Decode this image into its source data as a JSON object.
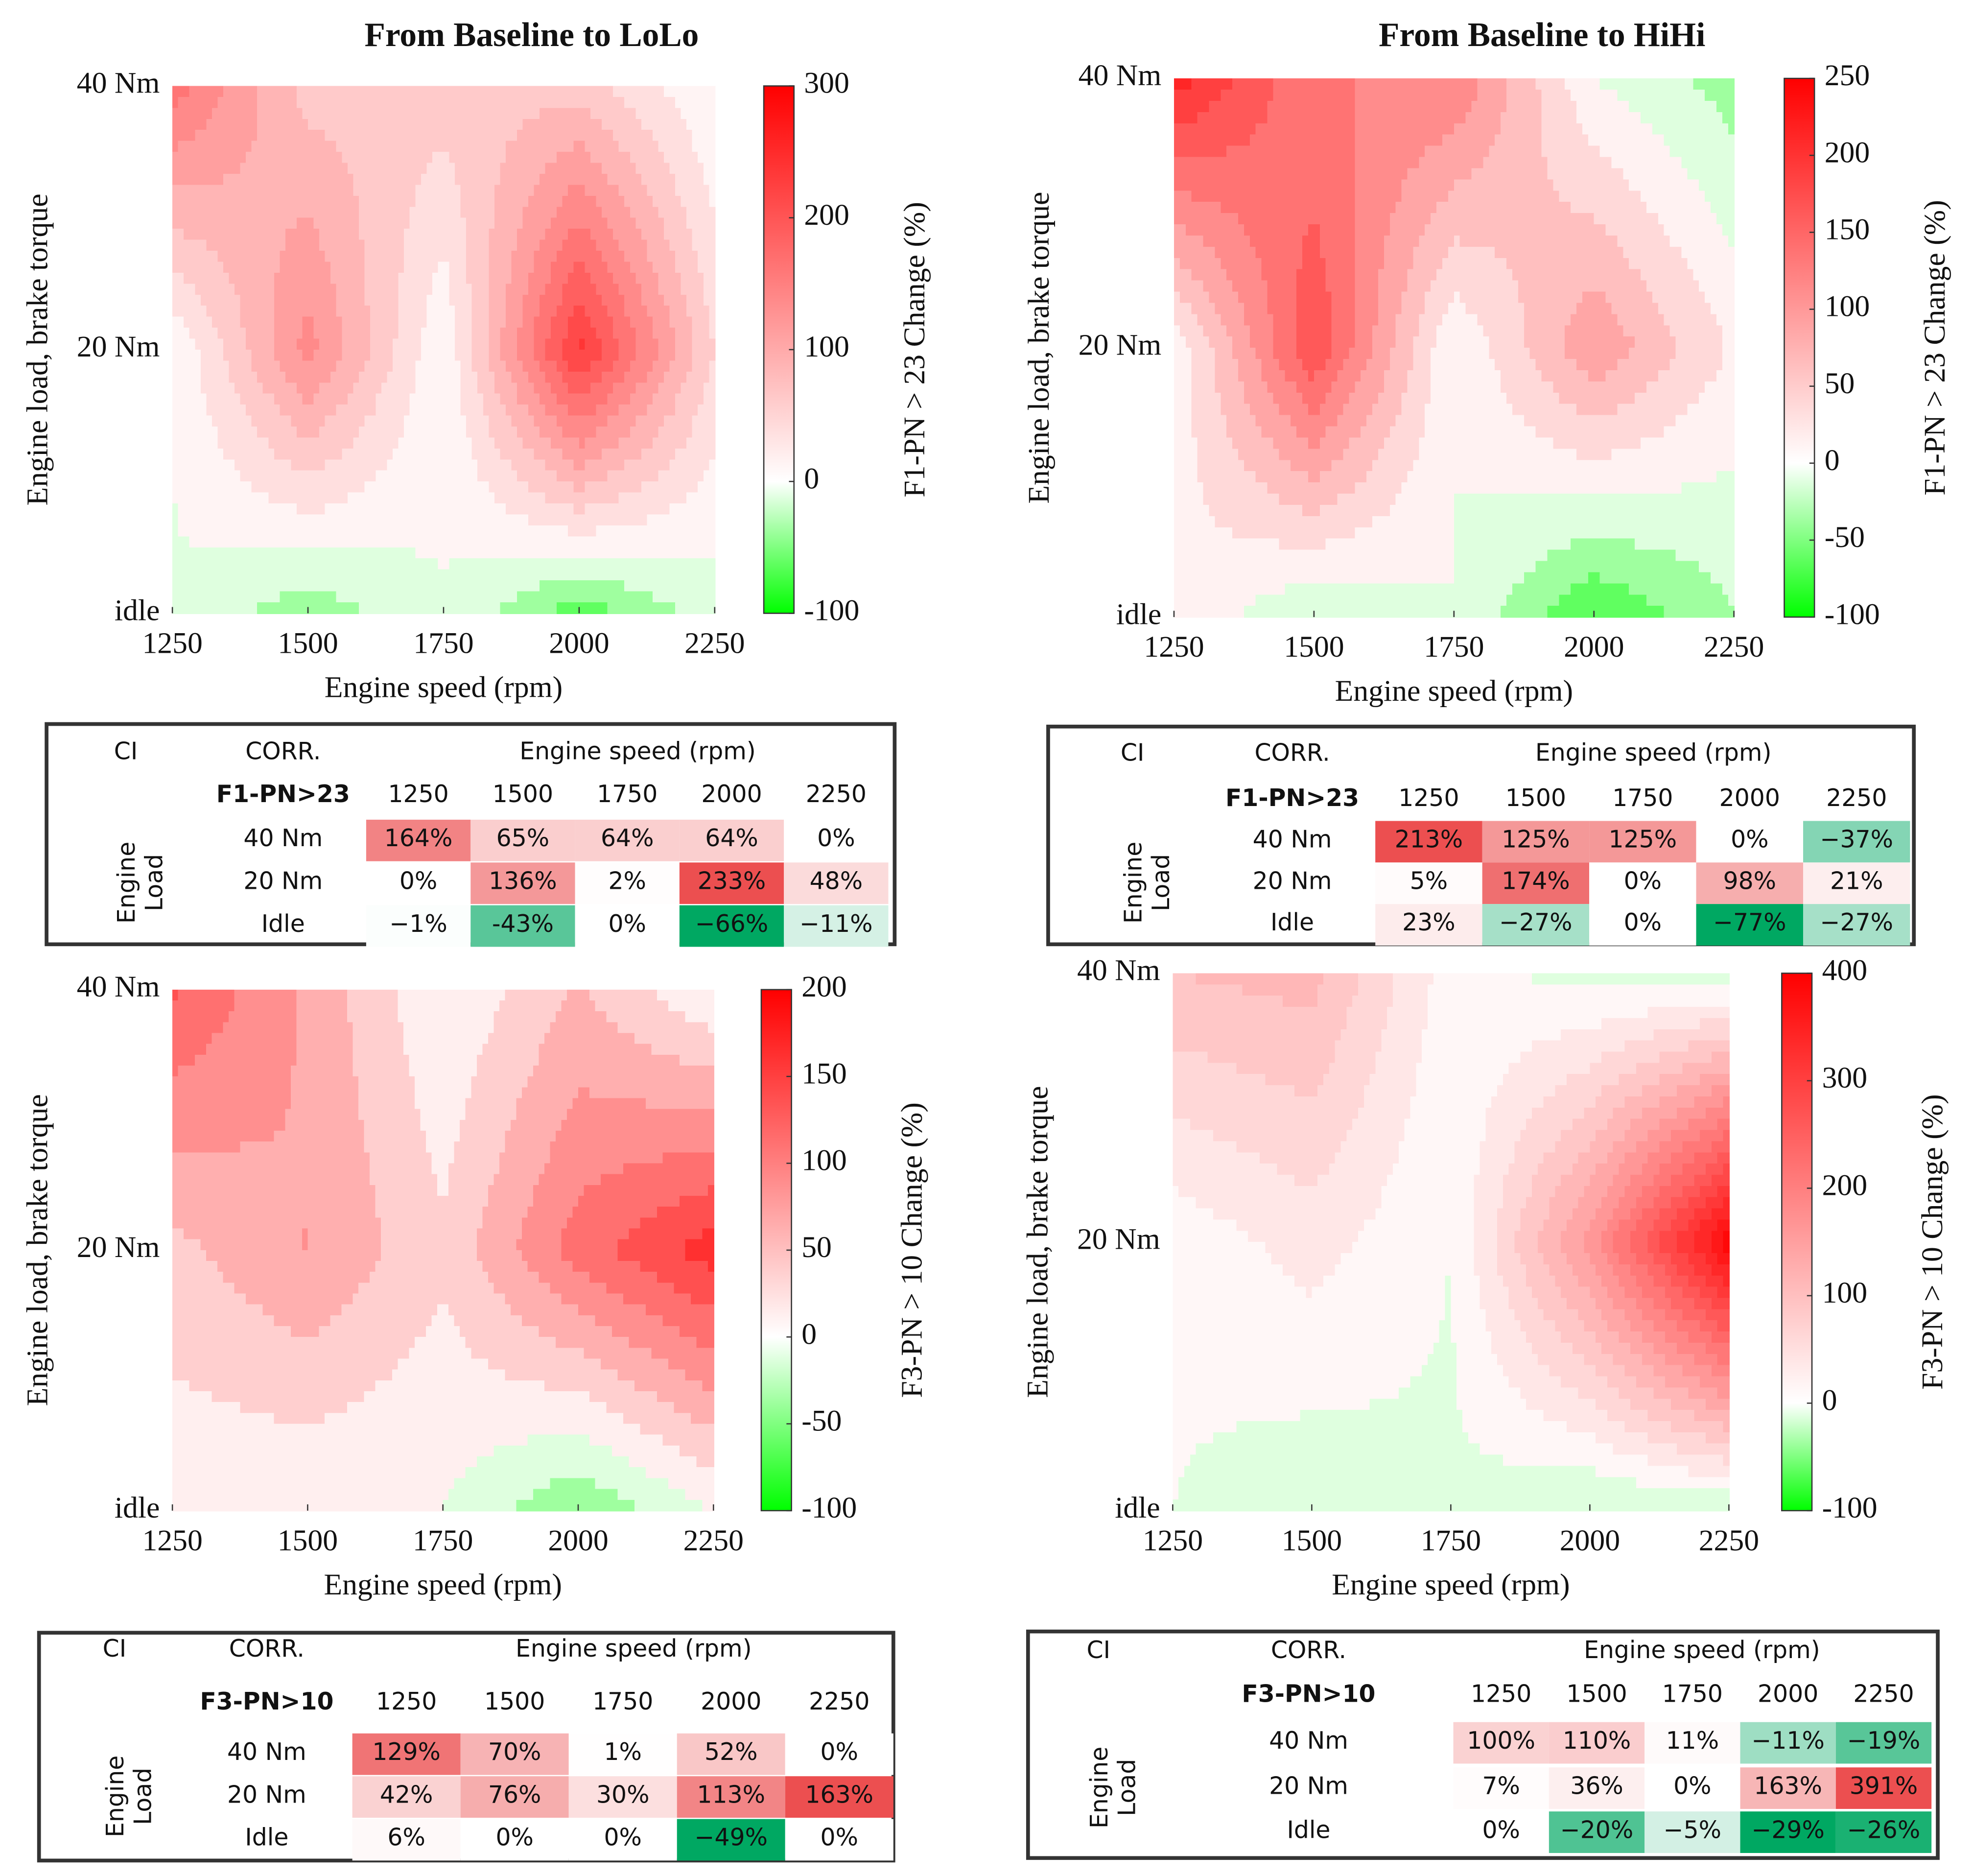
{
  "chart_data": [
    {
      "type": "contour",
      "title": "From Baseline to LoLo",
      "x": [
        1250,
        1500,
        1750,
        2000,
        2250
      ],
      "y": [
        "40 Nm",
        "20 Nm",
        "idle"
      ],
      "z": [
        [
          164,
          65,
          64,
          64,
          0
        ],
        [
          0,
          136,
          2,
          233,
          48
        ],
        [
          -1,
          -43,
          0,
          -66,
          -11
        ]
      ],
      "xlabel": "Engine speed (rpm)",
      "ylabel": "Engine load, brake torque",
      "colorbar_label": "F1-PN > 23 Change (%)",
      "clim": [
        -100,
        300
      ],
      "cticks": [
        -100,
        0,
        100,
        200,
        300
      ],
      "contour_step": 25,
      "colors": {
        "low": "#00ff00",
        "mid": "#ffffff",
        "high": "#ff0000"
      },
      "table": {
        "ci": "CI",
        "corr": "CORR.",
        "speed_header": "Engine speed (rpm)",
        "metric": "F1-PN>23",
        "columns": [
          "1250",
          "1500",
          "1750",
          "2000",
          "2250"
        ],
        "side_label": [
          "Engine",
          "Load"
        ],
        "row_labels": [
          "40 Nm",
          "20 Nm",
          "Idle"
        ],
        "value_labels": [
          [
            "164%",
            "65%",
            "64%",
            "64%",
            "0%"
          ],
          [
            "0%",
            "136%",
            "2%",
            "233%",
            "48%"
          ],
          [
            "−1%",
            "-43%",
            "0%",
            "−66%",
            "−11%"
          ]
        ]
      }
    },
    {
      "type": "contour",
      "title": "From Baseline to HiHi",
      "x": [
        1250,
        1500,
        1750,
        2000,
        2250
      ],
      "y": [
        "40 Nm",
        "20 Nm",
        "idle"
      ],
      "z": [
        [
          213,
          125,
          125,
          0,
          -37
        ],
        [
          5,
          174,
          0,
          98,
          21
        ],
        [
          23,
          -27,
          0,
          -77,
          -27
        ]
      ],
      "xlabel": "Engine speed (rpm)",
      "ylabel": "Engine load, brake torque",
      "colorbar_label": "F1-PN > 23 Change (%)",
      "clim": [
        -100,
        250
      ],
      "cticks": [
        -100,
        -50,
        0,
        50,
        100,
        150,
        200,
        250
      ],
      "contour_step": 25,
      "colors": {
        "low": "#00ff00",
        "mid": "#ffffff",
        "high": "#ff0000"
      },
      "table": {
        "ci": "CI",
        "corr": "CORR.",
        "speed_header": "Engine speed (rpm)",
        "metric": "F1-PN>23",
        "columns": [
          "1250",
          "1500",
          "1750",
          "2000",
          "2250"
        ],
        "side_label": [
          "Engine",
          "Load"
        ],
        "row_labels": [
          "40 Nm",
          "20 Nm",
          "Idle"
        ],
        "value_labels": [
          [
            "213%",
            "125%",
            "125%",
            "0%",
            "−37%"
          ],
          [
            "5%",
            "174%",
            "0%",
            "98%",
            "21%"
          ],
          [
            "23%",
            "−27%",
            "0%",
            "−77%",
            "−27%"
          ]
        ]
      }
    },
    {
      "type": "contour",
      "x": [
        1250,
        1500,
        1750,
        2000,
        2250
      ],
      "y": [
        "40 Nm",
        "20 Nm",
        "idle"
      ],
      "z": [
        [
          129,
          70,
          1,
          52,
          0
        ],
        [
          42,
          76,
          30,
          113,
          163
        ],
        [
          6,
          0,
          0,
          -49,
          0
        ]
      ],
      "xlabel": "Engine speed (rpm)",
      "ylabel": "Engine load, brake torque",
      "colorbar_label": "F3-PN > 10 Change (%)",
      "clim": [
        -100,
        200
      ],
      "cticks": [
        -100,
        -50,
        0,
        50,
        100,
        150,
        200
      ],
      "contour_step": 25,
      "colors": {
        "low": "#00ff00",
        "mid": "#ffffff",
        "high": "#ff0000"
      },
      "table": {
        "ci": "CI",
        "corr": "CORR.",
        "speed_header": "Engine speed (rpm)",
        "metric": "F3-PN>10",
        "columns": [
          "1250",
          "1500",
          "1750",
          "2000",
          "2250"
        ],
        "side_label": [
          "Engine",
          "Load"
        ],
        "row_labels": [
          "40 Nm",
          "20 Nm",
          "Idle"
        ],
        "value_labels": [
          [
            "129%",
            "70%",
            "1%",
            "52%",
            "0%"
          ],
          [
            "42%",
            "76%",
            "30%",
            "113%",
            "163%"
          ],
          [
            "6%",
            "0%",
            "0%",
            "−49%",
            "0%"
          ]
        ]
      }
    },
    {
      "type": "contour",
      "x": [
        1250,
        1500,
        1750,
        2000,
        2250
      ],
      "y": [
        "40 Nm",
        "20 Nm",
        "idle"
      ],
      "z": [
        [
          100,
          110,
          11,
          -11,
          -19
        ],
        [
          7,
          36,
          0,
          163,
          391
        ],
        [
          0,
          -20,
          -5,
          -29,
          -26
        ]
      ],
      "xlabel": "Engine speed (rpm)",
      "ylabel": "Engine load, brake torque",
      "colorbar_label": "F3-PN > 10 Change (%)",
      "clim": [
        -100,
        400
      ],
      "cticks": [
        -100,
        0,
        100,
        200,
        300,
        400
      ],
      "contour_step": 25,
      "colors": {
        "low": "#00ff00",
        "mid": "#ffffff",
        "high": "#ff0000"
      },
      "table": {
        "ci": "CI",
        "corr": "CORR.",
        "speed_header": "Engine speed (rpm)",
        "metric": "F3-PN>10",
        "columns": [
          "1250",
          "1500",
          "1750",
          "2000",
          "2250"
        ],
        "side_label": [
          "Engine",
          "Load"
        ],
        "row_labels": [
          "40 Nm",
          "20 Nm",
          "Idle"
        ],
        "value_labels": [
          [
            "100%",
            "110%",
            "11%",
            "−11%",
            "−19%"
          ],
          [
            "7%",
            "36%",
            "0%",
            "163%",
            "391%"
          ],
          [
            "0%",
            "−20%",
            "−5%",
            "−29%",
            "−26%"
          ]
        ]
      }
    }
  ]
}
